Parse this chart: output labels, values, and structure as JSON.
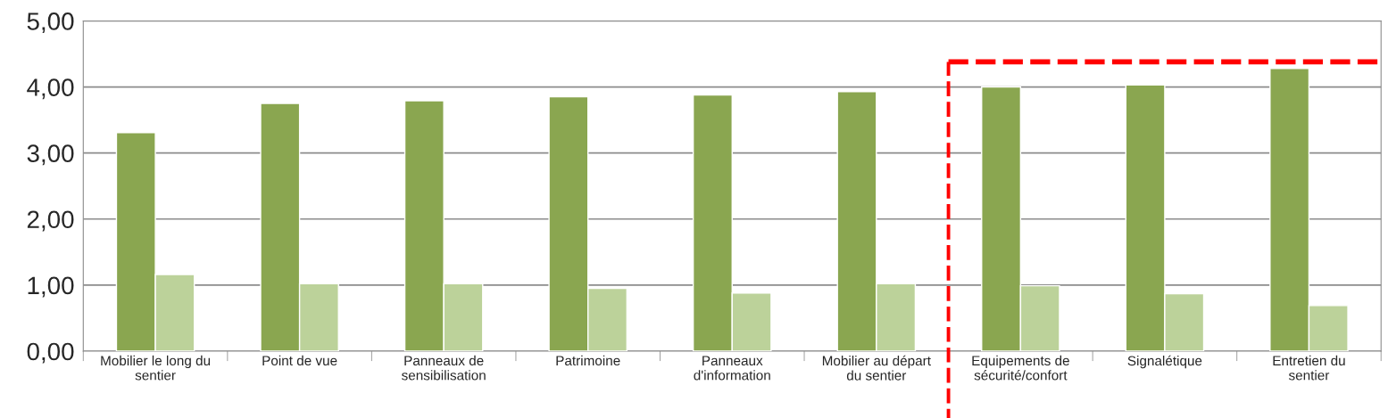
{
  "chart_data": {
    "type": "bar",
    "categories": [
      "Mobilier le long du\nsentier",
      "Point de vue",
      "Panneaux de\nsensibilisation",
      "Patrimoine",
      "Panneaux\nd'information",
      "Mobilier au départ\ndu sentier",
      "Equipements de\nsécurité/confort",
      "Signalétique",
      "Entretien du\nsentier"
    ],
    "series": [
      {
        "color": "#8aa650",
        "values": [
          3.31,
          3.75,
          3.79,
          3.85,
          3.88,
          3.93,
          4.0,
          4.03,
          4.28
        ]
      },
      {
        "color": "#bcd29a",
        "values": [
          1.16,
          1.02,
          1.02,
          0.95,
          0.88,
          1.02,
          0.99,
          0.87,
          0.69
        ]
      }
    ],
    "ylim": [
      0,
      5
    ],
    "yticks": [
      {
        "value": 0,
        "label": "0,00"
      },
      {
        "value": 1,
        "label": "1,00"
      },
      {
        "value": 2,
        "label": "2,00"
      },
      {
        "value": 3,
        "label": "3,00"
      },
      {
        "value": 4,
        "label": "4,00"
      },
      {
        "value": 5,
        "label": "5,00"
      }
    ],
    "ref_lines": [
      {
        "axis": "y",
        "value": 4.38,
        "color": "#ff0000",
        "line_style": "dashed"
      }
    ],
    "grid": "y",
    "legend": false
  }
}
